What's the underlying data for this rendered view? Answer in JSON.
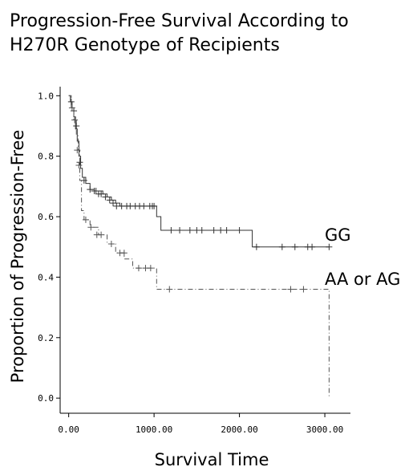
{
  "chart_data": {
    "type": "line",
    "subtype": "kaplan-meier",
    "title_lines": [
      "Progression-Free Survival According to",
      "H270R Genotype of Recipients"
    ],
    "xlabel": "Survival Time",
    "ylabel": "Proportion of Progression-Free",
    "xlim": [
      -100,
      3300
    ],
    "ylim": [
      -0.05,
      1.03
    ],
    "xticks": [
      0,
      1000,
      2000,
      3000
    ],
    "xtick_labels": [
      "0.00",
      "1000.00",
      "2000.00",
      "3000.00"
    ],
    "yticks": [
      0.0,
      0.2,
      0.4,
      0.6,
      0.8,
      1.0
    ],
    "ytick_labels": [
      "0.0",
      "0.2",
      "0.4",
      "0.6",
      "0.8",
      "1.0"
    ],
    "grid": false,
    "series": [
      {
        "name": "GG",
        "line_style": "solid",
        "color": "#333333",
        "steps": [
          [
            0,
            1.0
          ],
          [
            20,
            0.98
          ],
          [
            40,
            0.96
          ],
          [
            60,
            0.93
          ],
          [
            80,
            0.89
          ],
          [
            100,
            0.85
          ],
          [
            120,
            0.8
          ],
          [
            140,
            0.76
          ],
          [
            160,
            0.73
          ],
          [
            200,
            0.71
          ],
          [
            250,
            0.69
          ],
          [
            300,
            0.685
          ],
          [
            400,
            0.675
          ],
          [
            450,
            0.665
          ],
          [
            500,
            0.655
          ],
          [
            550,
            0.645
          ],
          [
            600,
            0.635
          ],
          [
            1030,
            0.6
          ],
          [
            1080,
            0.555
          ],
          [
            2150,
            0.5
          ],
          [
            3050,
            0.5
          ]
        ],
        "censored": [
          [
            30,
            0.98
          ],
          [
            60,
            0.95
          ],
          [
            90,
            0.9
          ],
          [
            130,
            0.78
          ],
          [
            180,
            0.72
          ],
          [
            250,
            0.69
          ],
          [
            300,
            0.685
          ],
          [
            320,
            0.685
          ],
          [
            350,
            0.675
          ],
          [
            380,
            0.675
          ],
          [
            430,
            0.665
          ],
          [
            480,
            0.655
          ],
          [
            520,
            0.645
          ],
          [
            560,
            0.635
          ],
          [
            620,
            0.635
          ],
          [
            680,
            0.635
          ],
          [
            720,
            0.635
          ],
          [
            780,
            0.635
          ],
          [
            830,
            0.635
          ],
          [
            880,
            0.635
          ],
          [
            950,
            0.635
          ],
          [
            980,
            0.635
          ],
          [
            1000,
            0.635
          ],
          [
            1200,
            0.555
          ],
          [
            1300,
            0.555
          ],
          [
            1420,
            0.555
          ],
          [
            1500,
            0.555
          ],
          [
            1560,
            0.555
          ],
          [
            1700,
            0.555
          ],
          [
            1780,
            0.555
          ],
          [
            1850,
            0.555
          ],
          [
            2000,
            0.555
          ],
          [
            2200,
            0.5
          ],
          [
            2500,
            0.5
          ],
          [
            2650,
            0.5
          ],
          [
            2800,
            0.5
          ],
          [
            2850,
            0.5
          ],
          [
            3050,
            0.5
          ]
        ]
      },
      {
        "name": "AA or AG",
        "line_style": "dashdot",
        "color": "#555555",
        "steps": [
          [
            0,
            1.0
          ],
          [
            30,
            0.96
          ],
          [
            60,
            0.92
          ],
          [
            90,
            0.87
          ],
          [
            110,
            0.82
          ],
          [
            130,
            0.72
          ],
          [
            150,
            0.62
          ],
          [
            180,
            0.59
          ],
          [
            250,
            0.565
          ],
          [
            350,
            0.54
          ],
          [
            450,
            0.51
          ],
          [
            550,
            0.48
          ],
          [
            650,
            0.46
          ],
          [
            750,
            0.43
          ],
          [
            1030,
            0.36
          ],
          [
            3050,
            0.36
          ],
          [
            3050,
            0.0
          ]
        ],
        "censored": [
          [
            40,
            0.96
          ],
          [
            70,
            0.92
          ],
          [
            100,
            0.82
          ],
          [
            120,
            0.77
          ],
          [
            200,
            0.59
          ],
          [
            260,
            0.565
          ],
          [
            330,
            0.54
          ],
          [
            380,
            0.54
          ],
          [
            500,
            0.51
          ],
          [
            600,
            0.48
          ],
          [
            650,
            0.48
          ],
          [
            820,
            0.43
          ],
          [
            900,
            0.43
          ],
          [
            960,
            0.43
          ],
          [
            1180,
            0.36
          ],
          [
            2600,
            0.36
          ],
          [
            2750,
            0.36
          ]
        ]
      }
    ],
    "series_labels": [
      "GG",
      "AA or AG"
    ],
    "colors": {
      "axis": "#000000",
      "gg": "#333333",
      "aa_ag": "#555555"
    }
  }
}
